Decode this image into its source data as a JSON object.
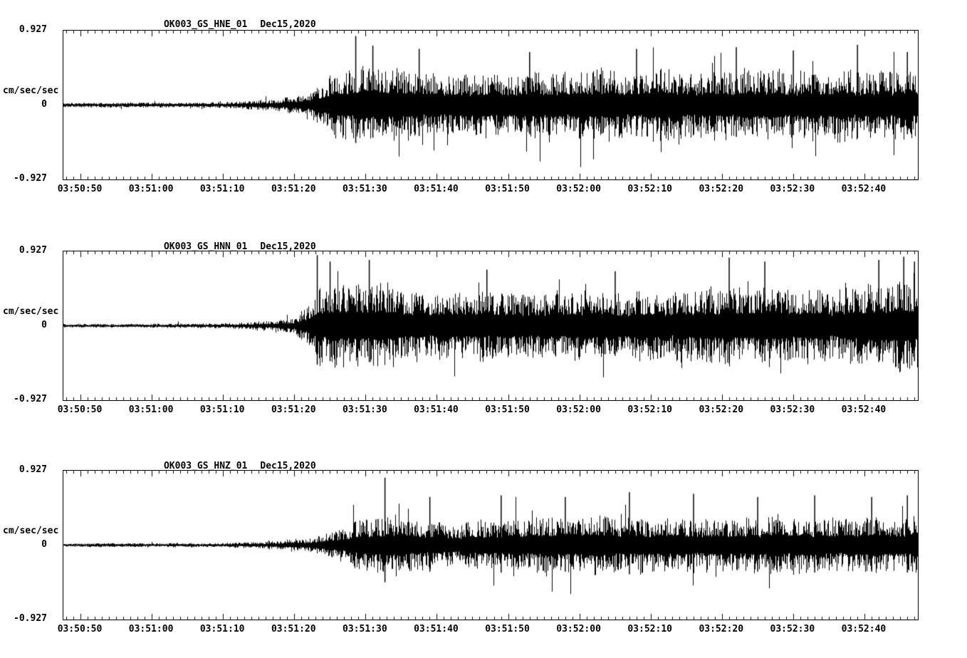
{
  "page": {
    "background": "#ffffff",
    "trace_color": "#000000"
  },
  "chart_data": [
    {
      "type": "line",
      "kind": "seismogram",
      "title": "OK003_GS_HNE_01",
      "date": "Dec15,2020",
      "ylabel": "cm/sec/sec",
      "ylim": [
        -0.927,
        0.927
      ],
      "y_ticks": [
        0.927,
        0,
        -0.927
      ],
      "y_tick_labels": [
        "0.927",
        "0",
        "-0.927"
      ],
      "x_tick_labels": [
        "03:50:50",
        "03:51:00",
        "03:51:10",
        "03:51:20",
        "03:51:30",
        "03:51:40",
        "03:51:50",
        "03:52:00",
        "03:52:10",
        "03:52:20",
        "03:52:30",
        "03:52:40"
      ],
      "x_major_interval_sec": 10,
      "x_minor_interval_sec": 1,
      "time_window": {
        "start_approx": "03:50:48",
        "end_approx": "03:52:47"
      },
      "grid": false,
      "legend": false,
      "seed": 1101,
      "envelope": [
        [
          -2.4,
          0.028
        ],
        [
          15,
          0.03
        ],
        [
          22,
          0.045
        ],
        [
          27,
          0.07
        ],
        [
          31,
          0.12
        ],
        [
          33,
          0.22
        ],
        [
          35,
          0.34
        ],
        [
          38,
          0.44
        ],
        [
          41,
          0.5
        ],
        [
          44,
          0.46
        ],
        [
          48,
          0.4
        ],
        [
          55,
          0.38
        ],
        [
          62,
          0.42
        ],
        [
          70,
          0.4
        ],
        [
          78,
          0.43
        ],
        [
          86,
          0.4
        ],
        [
          94,
          0.43
        ],
        [
          102,
          0.41
        ],
        [
          110,
          0.43
        ],
        [
          117.5,
          0.42
        ]
      ],
      "spikes": [
        [
          38.6,
          0.86
        ],
        [
          41,
          0.74
        ],
        [
          47.5,
          0.7
        ],
        [
          63,
          0.66
        ],
        [
          78,
          0.7
        ],
        [
          92,
          0.72
        ],
        [
          100,
          0.68
        ],
        [
          109,
          0.75
        ],
        [
          116,
          0.66
        ]
      ]
    },
    {
      "type": "line",
      "kind": "seismogram",
      "title": "OK003_GS_HNN_01",
      "date": "Dec15,2020",
      "ylabel": "cm/sec/sec",
      "ylim": [
        -0.927,
        0.927
      ],
      "y_ticks": [
        0.927,
        0,
        -0.927
      ],
      "y_tick_labels": [
        "0.927",
        "0",
        "-0.927"
      ],
      "x_tick_labels": [
        "03:50:50",
        "03:51:00",
        "03:51:10",
        "03:51:20",
        "03:51:30",
        "03:51:40",
        "03:51:50",
        "03:52:00",
        "03:52:10",
        "03:52:20",
        "03:52:30",
        "03:52:40"
      ],
      "x_major_interval_sec": 10,
      "x_minor_interval_sec": 1,
      "time_window": {
        "start_approx": "03:50:48",
        "end_approx": "03:52:47"
      },
      "grid": false,
      "legend": false,
      "seed": 2202,
      "envelope": [
        [
          -2.4,
          0.022
        ],
        [
          15,
          0.028
        ],
        [
          22,
          0.04
        ],
        [
          27,
          0.06
        ],
        [
          30,
          0.1
        ],
        [
          32,
          0.28
        ],
        [
          33.5,
          0.5
        ],
        [
          36,
          0.52
        ],
        [
          39,
          0.46
        ],
        [
          42,
          0.52
        ],
        [
          45,
          0.44
        ],
        [
          50,
          0.4
        ],
        [
          57,
          0.44
        ],
        [
          64,
          0.41
        ],
        [
          72,
          0.44
        ],
        [
          80,
          0.42
        ],
        [
          88,
          0.47
        ],
        [
          96,
          0.5
        ],
        [
          103,
          0.44
        ],
        [
          110,
          0.48
        ],
        [
          114,
          0.52
        ],
        [
          117.5,
          0.55
        ]
      ],
      "spikes": [
        [
          33.2,
          0.88
        ],
        [
          35,
          0.8
        ],
        [
          40.5,
          0.82
        ],
        [
          57,
          0.7
        ],
        [
          75,
          0.68
        ],
        [
          91,
          0.85
        ],
        [
          96,
          0.8
        ],
        [
          112,
          0.82
        ],
        [
          115.5,
          0.86
        ],
        [
          117,
          0.8
        ]
      ]
    },
    {
      "type": "line",
      "kind": "seismogram",
      "title": "OK003_GS_HNZ_01",
      "date": "Dec15,2020",
      "ylabel": "cm/sec/sec",
      "ylim": [
        -0.927,
        0.927
      ],
      "y_ticks": [
        0.927,
        0,
        -0.927
      ],
      "y_tick_labels": [
        "0.927",
        "0",
        "-0.927"
      ],
      "x_tick_labels": [
        "03:50:50",
        "03:51:00",
        "03:51:10",
        "03:51:20",
        "03:51:30",
        "03:51:40",
        "03:51:50",
        "03:52:00",
        "03:52:10",
        "03:52:20",
        "03:52:30",
        "03:52:40"
      ],
      "x_major_interval_sec": 10,
      "x_minor_interval_sec": 1,
      "time_window": {
        "start_approx": "03:50:48",
        "end_approx": "03:52:47"
      },
      "grid": false,
      "legend": false,
      "seed": 3303,
      "envelope": [
        [
          -2.4,
          0.02
        ],
        [
          20,
          0.028
        ],
        [
          27,
          0.05
        ],
        [
          31,
          0.08
        ],
        [
          34,
          0.12
        ],
        [
          36,
          0.2
        ],
        [
          38,
          0.28
        ],
        [
          41,
          0.33
        ],
        [
          44,
          0.38
        ],
        [
          47,
          0.3
        ],
        [
          52,
          0.28
        ],
        [
          58,
          0.3
        ],
        [
          64,
          0.32
        ],
        [
          70,
          0.34
        ],
        [
          76,
          0.33
        ],
        [
          82,
          0.35
        ],
        [
          88,
          0.33
        ],
        [
          94,
          0.34
        ],
        [
          100,
          0.35
        ],
        [
          106,
          0.34
        ],
        [
          112,
          0.35
        ],
        [
          117.5,
          0.34
        ]
      ],
      "spikes": [
        [
          42.7,
          0.84
        ],
        [
          49,
          0.6
        ],
        [
          59,
          0.62
        ],
        [
          68,
          0.6
        ],
        [
          77,
          0.66
        ],
        [
          86,
          0.64
        ],
        [
          95,
          0.6
        ],
        [
          103,
          0.62
        ],
        [
          111,
          0.6
        ],
        [
          116,
          0.62
        ]
      ]
    }
  ]
}
